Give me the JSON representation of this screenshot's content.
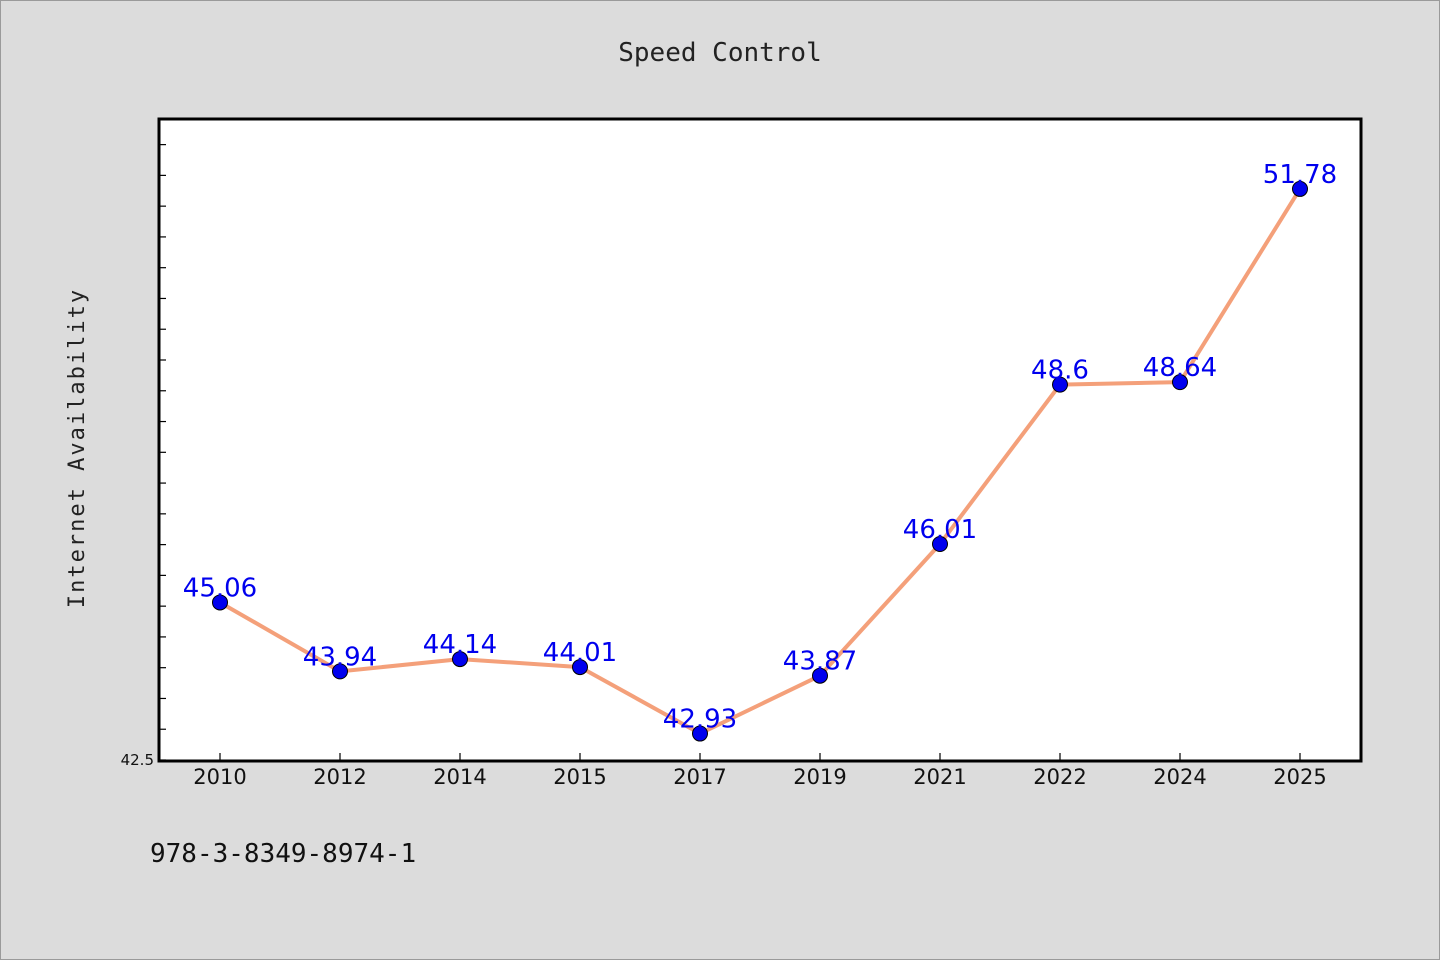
{
  "chart_data": {
    "type": "line",
    "title": "Speed Control",
    "xlabel": "",
    "ylabel": "Internet Availability",
    "categories": [
      "2010",
      "2012",
      "2014",
      "2015",
      "2017",
      "2019",
      "2021",
      "2022",
      "2024",
      "2025"
    ],
    "series": [
      {
        "values": [
          45.06,
          43.94,
          44.14,
          44.01,
          42.93,
          43.87,
          46.01,
          48.6,
          48.64,
          51.78
        ],
        "data_labels": [
          "45.06",
          "43.94",
          "44.14",
          "44.01",
          "42.93",
          "43.87",
          "46.01",
          "48.6",
          "48.64",
          "51.78"
        ]
      }
    ],
    "y_tick_label": "42.5",
    "ylim": [
      42.5,
      52.9
    ],
    "grid": false,
    "colors": {
      "line": "#f4a07a",
      "marker": "#0000ee",
      "label": "#0000ee",
      "background": "#dcdcdc",
      "plot_bg": "#ffffff"
    }
  },
  "footnote": "978-3-8349-8974-1"
}
